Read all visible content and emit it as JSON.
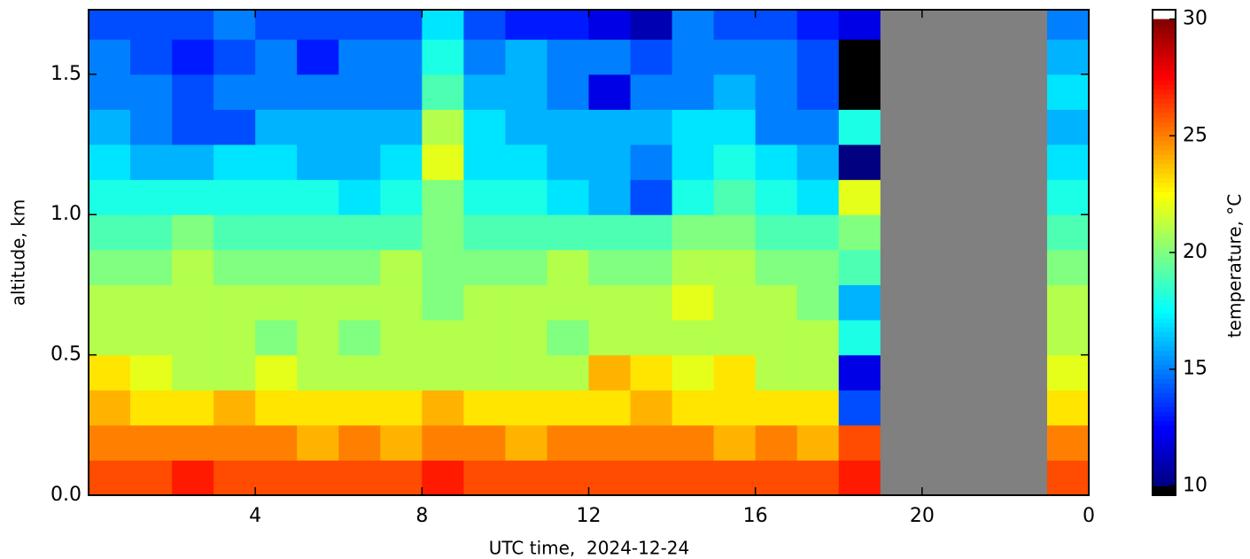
{
  "chart_data": {
    "type": "heatmap",
    "xlabel": "UTC time,  2024-12-24",
    "ylabel": "altitude, km",
    "colorbar_label": "temperature, °C",
    "cmap": "jet",
    "under_color": "#000000",
    "over_color": "#ffffff",
    "nan_color": "#808080",
    "xlim": [
      0,
      24
    ],
    "xticks": [
      4,
      8,
      12,
      16,
      20,
      {
        "value": 24,
        "label": "0"
      }
    ],
    "ylim": [
      0,
      1.73
    ],
    "yticks": [
      {
        "value": 0,
        "label": "0.0"
      },
      0.5,
      {
        "value": 1,
        "label": "1.0"
      },
      1.5
    ],
    "clim": [
      9.6,
      30.4
    ],
    "cticks": [
      10,
      15,
      20,
      25,
      30
    ],
    "x_edges": [
      0,
      1,
      2,
      3,
      4,
      5,
      6,
      7,
      8,
      9,
      10,
      11,
      12,
      13,
      14,
      15,
      16,
      17,
      18,
      19,
      20,
      21,
      22,
      23,
      24
    ],
    "y_edges": [
      0,
      0.125,
      0.25,
      0.375,
      0.5,
      0.625,
      0.75,
      0.875,
      1,
      1.125,
      1.25,
      1.375,
      1.5,
      1.625,
      1.73
    ],
    "z": [
      [
        26,
        26,
        27,
        26,
        26,
        26,
        26,
        26,
        27,
        26,
        26,
        26,
        26,
        26,
        26,
        26,
        26,
        26,
        27,
        null,
        null,
        null,
        null,
        26
      ],
      [
        25,
        25,
        25,
        25,
        25,
        24,
        25,
        24,
        25,
        25,
        24,
        25,
        25,
        25,
        25,
        24,
        25,
        24,
        26,
        null,
        null,
        null,
        null,
        25
      ],
      [
        24,
        23,
        23,
        24,
        23,
        23,
        23,
        23,
        24,
        23,
        23,
        23,
        23,
        24,
        23,
        23,
        23,
        23,
        14,
        null,
        null,
        null,
        null,
        23
      ],
      [
        23,
        22,
        21,
        21,
        22,
        21,
        21,
        21,
        21,
        21,
        21,
        21,
        24,
        23,
        22,
        23,
        21,
        21,
        12,
        null,
        null,
        null,
        null,
        22
      ],
      [
        21,
        21,
        21,
        21,
        20,
        21,
        20,
        21,
        21,
        21,
        21,
        20,
        21,
        21,
        21,
        21,
        21,
        21,
        18,
        null,
        null,
        null,
        null,
        21
      ],
      [
        21,
        21,
        21,
        21,
        21,
        21,
        21,
        21,
        20,
        21,
        21,
        21,
        21,
        21,
        22,
        21,
        21,
        20,
        16,
        null,
        null,
        null,
        null,
        21
      ],
      [
        20,
        20,
        21,
        20,
        20,
        20,
        20,
        21,
        20,
        20,
        20,
        21,
        20,
        20,
        21,
        21,
        20,
        20,
        19,
        null,
        null,
        null,
        null,
        20
      ],
      [
        19,
        19,
        20,
        19,
        19,
        19,
        19,
        19,
        20,
        19,
        19,
        19,
        19,
        19,
        20,
        20,
        19,
        19,
        20,
        null,
        null,
        null,
        null,
        19
      ],
      [
        18,
        18,
        18,
        18,
        18,
        18,
        17,
        18,
        20,
        18,
        18,
        17,
        16,
        14,
        18,
        19,
        18,
        17,
        22,
        null,
        null,
        null,
        null,
        18
      ],
      [
        17,
        16,
        16,
        17,
        17,
        16,
        16,
        17,
        22,
        17,
        17,
        16,
        16,
        15,
        17,
        18,
        17,
        16,
        10,
        null,
        null,
        null,
        null,
        17
      ],
      [
        16,
        15,
        14,
        14,
        16,
        16,
        16,
        16,
        21,
        17,
        16,
        16,
        16,
        16,
        17,
        17,
        15,
        15,
        18,
        null,
        null,
        null,
        null,
        16
      ],
      [
        15,
        15,
        14,
        15,
        15,
        15,
        15,
        15,
        19,
        16,
        16,
        15,
        12,
        15,
        15,
        16,
        15,
        14,
        9,
        null,
        null,
        null,
        null,
        17
      ],
      [
        15,
        14,
        13,
        14,
        15,
        13,
        15,
        15,
        18,
        15,
        16,
        15,
        15,
        14,
        15,
        15,
        15,
        14,
        9,
        null,
        null,
        null,
        null,
        16
      ],
      [
        14,
        14,
        14,
        15,
        14,
        14,
        14,
        14,
        17,
        14,
        13,
        13,
        12,
        11,
        15,
        14,
        14,
        13,
        12,
        null,
        null,
        null,
        null,
        15
      ]
    ]
  }
}
